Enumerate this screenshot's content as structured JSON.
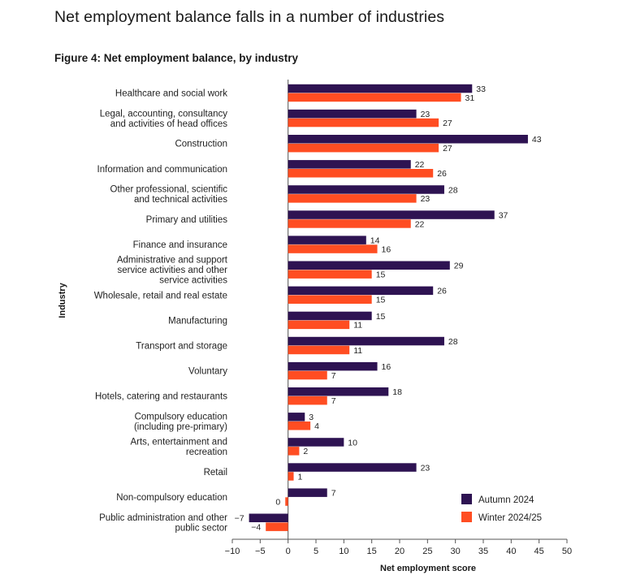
{
  "page": {
    "heading": "Net employment balance falls in a number of industries",
    "figure_title": "Figure 4: Net employment balance, by industry"
  },
  "colors": {
    "series_autumn": "#2e1352",
    "series_winter": "#ff4d22",
    "axis": "#555555",
    "grid": "#dddddd"
  },
  "chart_data": {
    "type": "bar",
    "orientation": "horizontal",
    "categories": [
      [
        "Healthcare and social work"
      ],
      [
        "Legal, accounting, consultancy",
        "and activities of head offices"
      ],
      [
        "Construction"
      ],
      [
        "Information and communication"
      ],
      [
        "Other professional, scientific",
        "and technical activities"
      ],
      [
        "Primary and utilities"
      ],
      [
        "Finance and insurance"
      ],
      [
        "Administrative and support",
        "service activities and other",
        "service activities"
      ],
      [
        "Wholesale, retail and real estate"
      ],
      [
        "Manufacturing"
      ],
      [
        "Transport and storage"
      ],
      [
        "Voluntary"
      ],
      [
        "Hotels, catering and restaurants"
      ],
      [
        "Compulsory education",
        "(including pre-primary)"
      ],
      [
        "Arts, entertainment and",
        "recreation"
      ],
      [
        "Retail"
      ],
      [
        "Non-compulsory education"
      ],
      [
        "Public administration and other",
        "public sector"
      ]
    ],
    "series": [
      {
        "name": "Autumn 2024",
        "values": [
          33,
          23,
          43,
          22,
          28,
          37,
          14,
          29,
          26,
          15,
          28,
          16,
          18,
          3,
          10,
          23,
          7,
          -7
        ]
      },
      {
        "name": "Winter 2024/25",
        "values": [
          31,
          27,
          27,
          26,
          23,
          22,
          16,
          15,
          15,
          11,
          11,
          7,
          7,
          4,
          2,
          1,
          -0.5,
          -4
        ]
      }
    ],
    "value_labels": [
      [
        "33",
        "23",
        "43",
        "22",
        "28",
        "37",
        "14",
        "29",
        "26",
        "15",
        "28",
        "16",
        "18",
        "3",
        "10",
        "23",
        "7",
        "−7"
      ],
      [
        "31",
        "27",
        "27",
        "26",
        "23",
        "22",
        "16",
        "15",
        "15",
        "11",
        "11",
        "7",
        "7",
        "4",
        "2",
        "1",
        "0",
        "−4"
      ]
    ],
    "xlim": [
      -10,
      50
    ],
    "xticks": [
      -10,
      -5,
      0,
      5,
      10,
      15,
      20,
      25,
      30,
      35,
      40,
      45,
      50
    ],
    "xtick_labels": [
      "−10",
      "−5",
      "0",
      "5",
      "10",
      "15",
      "20",
      "25",
      "30",
      "35",
      "40",
      "45",
      "50"
    ],
    "xlabel": "Net employment score",
    "ylabel": "Industry",
    "legend_position": "bottom-right",
    "grid": false
  }
}
